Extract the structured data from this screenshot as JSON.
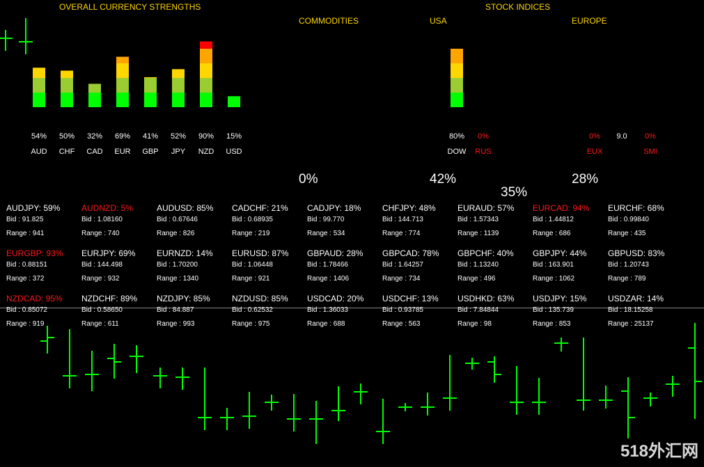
{
  "headers": {
    "overall": "OVERALL CURRENCY STRENGTHS",
    "stock_indices": "STOCK INDICES",
    "commodities": "COMMODITIES",
    "usa": "USA",
    "europe": "EUROPE"
  },
  "currencies": [
    {
      "name": "AUD",
      "pct": "54%",
      "value": 54
    },
    {
      "name": "CHF",
      "pct": "50%",
      "value": 50
    },
    {
      "name": "CAD",
      "pct": "32%",
      "value": 32
    },
    {
      "name": "EUR",
      "pct": "69%",
      "value": 69
    },
    {
      "name": "GBP",
      "pct": "41%",
      "value": 41
    },
    {
      "name": "JPY",
      "pct": "52%",
      "value": 52
    },
    {
      "name": "NZD",
      "pct": "90%",
      "value": 90
    },
    {
      "name": "USD",
      "pct": "15%",
      "value": 15
    }
  ],
  "indices": [
    {
      "name": "DOW",
      "pct": "80%",
      "value": 80,
      "red": false
    },
    {
      "name": "RUS",
      "pct": "0%",
      "value": 0,
      "red": true
    },
    {
      "name": "EUX",
      "pct": "0%",
      "value": 0,
      "red": true
    },
    {
      "name": "",
      "pct": "9.0",
      "value": null,
      "red": false
    },
    {
      "name": "SMI",
      "pct": "0%",
      "value": 0,
      "red": true
    }
  ],
  "summary": {
    "commodities": "0%",
    "usa": "42%",
    "stocks": "35%",
    "europe": "28%"
  },
  "pairs": [
    [
      {
        "name": "AUDJPY: 59%",
        "bid": "Bid : 91.825",
        "range": "Range : 941",
        "red": false
      },
      {
        "name": "AUDNZD: 5%",
        "bid": "Bid : 1.08160",
        "range": "Range : 740",
        "red": true
      },
      {
        "name": "AUDUSD: 85%",
        "bid": "Bid : 0.67646",
        "range": "Range : 826",
        "red": false
      },
      {
        "name": "CADCHF: 21%",
        "bid": "Bid : 0.68935",
        "range": "Range : 219",
        "red": false
      },
      {
        "name": "CADJPY: 18%",
        "bid": "Bid : 99.770",
        "range": "Range : 534",
        "red": false
      },
      {
        "name": "CHFJPY: 48%",
        "bid": "Bid : 144.713",
        "range": "Range : 774",
        "red": false
      },
      {
        "name": "EURAUD: 57%",
        "bid": "Bid : 1.57343",
        "range": "Range : 1139",
        "red": false
      },
      {
        "name": "EURCAD: 94%",
        "bid": "Bid : 1.44812",
        "range": "Range : 686",
        "red": true
      },
      {
        "name": "EURCHF: 68%",
        "bid": "Bid : 0.99840",
        "range": "Range : 435",
        "red": false
      }
    ],
    [
      {
        "name": "EURGBP: 93%",
        "bid": "Bid : 0.88151",
        "range": "Range : 372",
        "red": true
      },
      {
        "name": "EURJPY: 69%",
        "bid": "Bid : 144.498",
        "range": "Range : 932",
        "red": false
      },
      {
        "name": "EURNZD: 14%",
        "bid": "Bid : 1.70200",
        "range": "Range : 1340",
        "red": false
      },
      {
        "name": "EURUSD: 87%",
        "bid": "Bid : 1.06448",
        "range": "Range : 921",
        "red": false
      },
      {
        "name": "GBPAUD: 28%",
        "bid": "Bid : 1.78466",
        "range": "Range : 1406",
        "red": false
      },
      {
        "name": "GBPCAD: 78%",
        "bid": "Bid : 1.64257",
        "range": "Range : 734",
        "red": false
      },
      {
        "name": "GBPCHF: 40%",
        "bid": "Bid : 1.13240",
        "range": "Range : 496",
        "red": false
      },
      {
        "name": "GBPJPY: 44%",
        "bid": "Bid : 163.901",
        "range": "Range : 1062",
        "red": false
      },
      {
        "name": "GBPUSD: 83%",
        "bid": "Bid : 1.20743",
        "range": "Range : 789",
        "red": false
      }
    ],
    [
      {
        "name": "NZDCAD: 95%",
        "bid": "Bid : 0.85072",
        "range": "Range : 919",
        "red": true
      },
      {
        "name": "NZDCHF: 89%",
        "bid": "Bid : 0.58650",
        "range": "Range : 611",
        "red": false
      },
      {
        "name": "NZDJPY: 85%",
        "bid": "Bid : 84.887",
        "range": "Range : 993",
        "red": false
      },
      {
        "name": "NZDUSD: 85%",
        "bid": "Bid : 0.62532",
        "range": "Range : 975",
        "red": false
      },
      {
        "name": "USDCAD: 20%",
        "bid": "Bid : 1.36033",
        "range": "Range : 688",
        "red": false
      },
      {
        "name": "USDCHF: 13%",
        "bid": "Bid : 0.93785",
        "range": "Range : 563",
        "red": false
      },
      {
        "name": "USDHKD: 63%",
        "bid": "Bid : 7.84844",
        "range": "Range : 98",
        "red": false
      },
      {
        "name": "USDJPY: 15%",
        "bid": "Bid : 135.739",
        "range": "Range : 853",
        "red": false
      },
      {
        "name": "USDZAR: 14%",
        "bid": "Bid : 18.15258",
        "range": "Range : 25137",
        "red": false
      }
    ]
  ],
  "watermark": "518外汇网",
  "colors": {
    "bull": "#00ff00",
    "red": "#ff1a1a",
    "header": "#ffd700"
  }
}
